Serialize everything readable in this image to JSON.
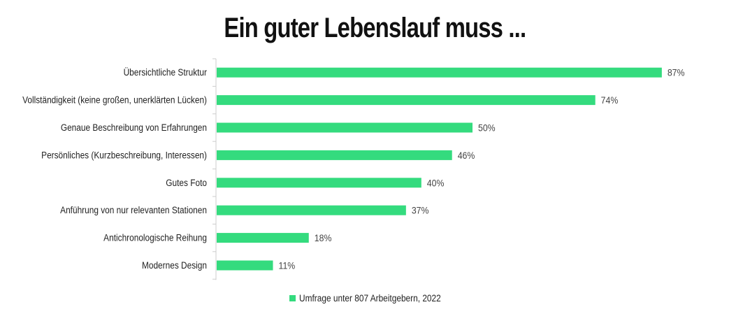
{
  "chart_data": {
    "type": "bar",
    "orientation": "horizontal",
    "title": "Ein guter Lebenslauf muss ...",
    "categories": [
      "Übersichtliche Struktur",
      "Vollständigkeit (keine großen, unerklärten Lücken)",
      "Genaue Beschreibung von Erfahrungen",
      "Persönliches (Kurzbeschreibung, Interessen)",
      "Gutes Foto",
      "Anführung von nur relevanten Stationen",
      "Antichronologische Reihung",
      "Modernes Design"
    ],
    "series": [
      {
        "name": "Umfrage unter 807 Arbeitgebern, 2022",
        "values": [
          87,
          74,
          50,
          46,
          40,
          37,
          18,
          11
        ],
        "color": "#34db7e"
      }
    ],
    "value_suffix": "%",
    "xlim": [
      0,
      100
    ],
    "grid": false,
    "legend_position": "bottom"
  }
}
